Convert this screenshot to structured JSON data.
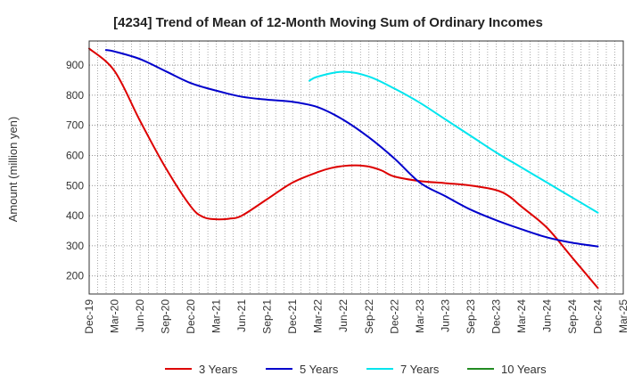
{
  "chart_data": {
    "type": "line",
    "title": "[4234]  Trend of Mean of 12-Month Moving Sum of Ordinary Incomes",
    "xlabel": "",
    "ylabel": "Amount (million yen)",
    "ylim": [
      140,
      980
    ],
    "yticks": [
      200,
      300,
      400,
      500,
      600,
      700,
      800,
      900
    ],
    "x_tick_labels": [
      "Dec-19",
      "Mar-20",
      "Jun-20",
      "Sep-20",
      "Dec-20",
      "Mar-21",
      "Jun-21",
      "Sep-21",
      "Dec-21",
      "Mar-22",
      "Jun-22",
      "Sep-22",
      "Dec-22",
      "Mar-23",
      "Jun-23",
      "Sep-23",
      "Dec-23",
      "Mar-24",
      "Jun-24",
      "Sep-24",
      "Dec-24",
      "Mar-25"
    ],
    "grid": true,
    "legend_position": "bottom",
    "series": [
      {
        "name": "3 Years",
        "color": "#dd0000",
        "x": [
          0,
          1,
          2,
          3,
          4,
          4.5,
          5,
          5.5,
          6,
          7,
          8,
          9,
          9.5,
          10,
          10.5,
          11,
          11.5,
          12,
          13,
          14,
          15,
          16,
          16.5,
          17,
          18,
          19,
          20
        ],
        "values": [
          955,
          880,
          715,
          560,
          430,
          395,
          388,
          390,
          400,
          455,
          510,
          545,
          558,
          565,
          567,
          563,
          550,
          530,
          515,
          508,
          500,
          485,
          465,
          430,
          360,
          260,
          160
        ]
      },
      {
        "name": "5 Years",
        "color": "#0000cc",
        "x": [
          0.66,
          1,
          2,
          3,
          4,
          5,
          6,
          7,
          8,
          9,
          10,
          11,
          12,
          13,
          14,
          15,
          16,
          17,
          18,
          19,
          20
        ],
        "values": [
          950,
          945,
          920,
          880,
          840,
          815,
          795,
          785,
          778,
          760,
          718,
          660,
          590,
          510,
          465,
          420,
          385,
          355,
          328,
          310,
          298
        ]
      },
      {
        "name": "7 Years",
        "color": "#00e5ee",
        "x": [
          8.66,
          9,
          10,
          11,
          12,
          13,
          14,
          15,
          16,
          17,
          18,
          19,
          20
        ],
        "values": [
          848,
          862,
          878,
          862,
          822,
          775,
          720,
          665,
          610,
          560,
          510,
          460,
          410
        ]
      },
      {
        "name": "10 Years",
        "color": "#228b22",
        "x": [],
        "values": []
      }
    ]
  }
}
